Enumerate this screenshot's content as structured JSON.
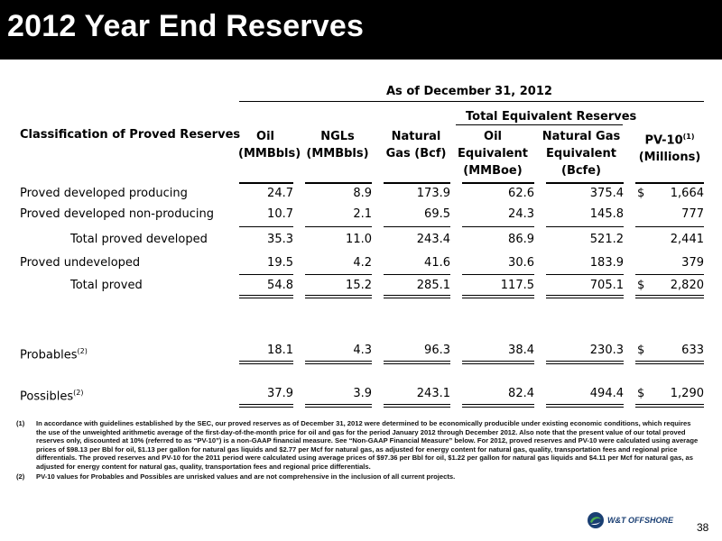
{
  "title": "2012 Year End Reserves",
  "table": {
    "as_of": "As of December 31, 2012",
    "total_equivalent": "Total Equivalent Reserves",
    "row_header": "Classification of Proved Reserves",
    "columns": {
      "oil": [
        "Oil",
        "(MMBbls)"
      ],
      "ngls": [
        "NGLs",
        "(MMBbls)"
      ],
      "gas": [
        "Natural",
        "Gas (Bcf)"
      ],
      "oil_eq": [
        "Oil",
        "Equivalent",
        "(MMBoe)"
      ],
      "gas_eq": [
        "Natural Gas",
        "Equivalent",
        "(Bcfe)"
      ],
      "pv10": [
        "PV-10",
        "(Millions)"
      ],
      "pv10_sup": "(1)"
    },
    "rows": [
      {
        "label": "Proved developed producing",
        "oil": "24.7",
        "ngls": "8.9",
        "gas": "173.9",
        "oil_eq": "62.6",
        "gas_eq": "375.4",
        "dollar": "$",
        "pv10": "1,664"
      },
      {
        "label": "Proved developed non-producing",
        "oil": "10.7",
        "ngls": "2.1",
        "gas": "69.5",
        "oil_eq": "24.3",
        "gas_eq": "145.8",
        "dollar": "",
        "pv10": "777"
      },
      {
        "label": "Total proved developed",
        "oil": "35.3",
        "ngls": "11.0",
        "gas": "243.4",
        "oil_eq": "86.9",
        "gas_eq": "521.2",
        "dollar": "",
        "pv10": "2,441"
      },
      {
        "label": "Proved undeveloped",
        "oil": "19.5",
        "ngls": "4.2",
        "gas": "41.6",
        "oil_eq": "30.6",
        "gas_eq": "183.9",
        "dollar": "",
        "pv10": "379"
      },
      {
        "label": "Total proved",
        "oil": "54.8",
        "ngls": "15.2",
        "gas": "285.1",
        "oil_eq": "117.5",
        "gas_eq": "705.1",
        "dollar": "$",
        "pv10": "2,820"
      },
      {
        "label": "Probables",
        "label_sup": "(2)",
        "oil": "18.1",
        "ngls": "4.3",
        "gas": "96.3",
        "oil_eq": "38.4",
        "gas_eq": "230.3",
        "dollar": "$",
        "pv10": "633"
      },
      {
        "label": "Possibles",
        "label_sup": "(2)",
        "oil": "37.9",
        "ngls": "3.9",
        "gas": "243.1",
        "oil_eq": "82.4",
        "gas_eq": "494.4",
        "dollar": "$",
        "pv10": "1,290"
      }
    ]
  },
  "footnotes": [
    {
      "num": "(1)",
      "text": "In accordance with guidelines established by the SEC, our proved reserves as of December 31, 2012 were determined to be economically producible under existing economic conditions, which requires the use of the unweighted arithmetic average of the first-day-of-the-month price for oil and gas for the period January 2012 through December 2012. Also note that the present value of our total proved reserves only, discounted at 10% (referred to as “PV-10”) is a non-GAAP financial measure. See “Non-GAAP Financial Measure” below. For 2012, proved reserves and PV-10 were calculated using average prices of $98.13 per Bbl for oil, $1.13 per gallon for natural gas liquids and $2.77 per Mcf for natural gas, as adjusted for energy content for natural gas, quality, transportation fees and regional price differentials. The proved reserves and PV-10 for the 2011 period were calculated using average prices of $97.36 per Bbl for oil, $1.22 per gallon for natural gas liquids and $4.11 per Mcf for natural gas, as adjusted for energy content for natural gas, quality, transportation fees and regional price differentials."
    },
    {
      "num": "(2)",
      "text": "PV-10 values for Probables and Possibles are unrisked values and are not comprehensive in the inclusion of all current projects."
    }
  ],
  "logo_text": "W&T OFFSHORE",
  "page_number": "38",
  "colors": {
    "title_bg": "#000000",
    "title_fg": "#ffffff",
    "logo_blue": "#1a3f73",
    "logo_green": "#4caf50"
  }
}
